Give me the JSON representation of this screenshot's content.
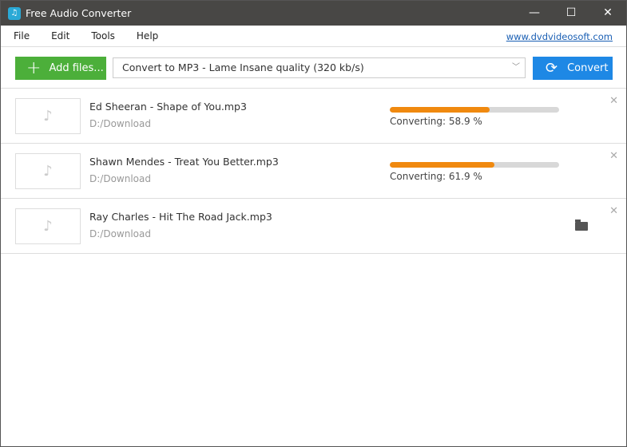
{
  "window": {
    "title": "Free Audio Converter",
    "minimize": "—",
    "maximize": "☐",
    "close": "✕"
  },
  "menu": {
    "items": [
      "File",
      "Edit",
      "Tools",
      "Help"
    ],
    "link": "www.dvdvideosoft.com"
  },
  "toolbar": {
    "add_files": "Add files...",
    "format": "Convert to MP3 - Lame Insane quality (320 kb/s)",
    "convert": "Convert"
  },
  "colors": {
    "progress": "#f0890f",
    "add": "#4caf3a",
    "convert": "#1e88e5"
  },
  "files": [
    {
      "name": "Ed Sheeran - Shape of You.mp3",
      "path": "D:/Download",
      "status": "Converting: 58.9 %",
      "progress": 58.9
    },
    {
      "name": "Shawn Mendes - Treat You Better.mp3",
      "path": "D:/Download",
      "status": "Converting: 61.9 %",
      "progress": 61.9
    },
    {
      "name": "Ray Charles - Hit The Road Jack.mp3",
      "path": "D:/Download",
      "status": null,
      "progress": null
    }
  ]
}
